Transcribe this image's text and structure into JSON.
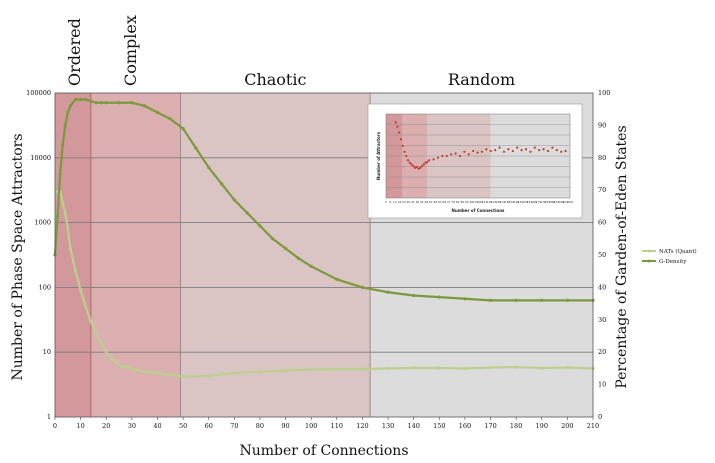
{
  "chart_data": {
    "type": "line",
    "xlabel": "Number of Connections",
    "ylabel_left": "Number of Phase Space Attractors",
    "ylabel_right": "Percentage of Garden-of-Eden States",
    "x_ticks": [
      0,
      10,
      20,
      30,
      40,
      50,
      60,
      70,
      80,
      90,
      100,
      110,
      120,
      130,
      140,
      150,
      160,
      170,
      180,
      190,
      200,
      210
    ],
    "y_left_ticks": [
      "1",
      "10",
      "100",
      "1000",
      "10000",
      "100000"
    ],
    "y_left_scale": "log",
    "y_left_range": [
      1,
      100000
    ],
    "y_right_ticks": [
      0,
      10,
      20,
      30,
      40,
      50,
      60,
      70,
      80,
      90,
      100
    ],
    "y_right_range": [
      0,
      100
    ],
    "xlim": [
      0,
      210
    ],
    "grid": true,
    "regions": [
      {
        "name": "Ordered",
        "x_start": 0,
        "x_end": 14,
        "color": "#d3989c"
      },
      {
        "name": "Complex",
        "x_start": 14,
        "x_end": 49,
        "color": "#dbaeb0"
      },
      {
        "name": "Chaotic",
        "x_start": 49,
        "x_end": 123,
        "color": "#dbc4c4"
      },
      {
        "name": "Random",
        "x_start": 123,
        "x_end": 210,
        "color": "#dcdcdc"
      }
    ],
    "series": [
      {
        "name": "NATs (Quant)",
        "axis": "left",
        "color": "#bcd08e",
        "x": [
          1,
          2,
          3,
          4,
          5,
          6,
          8,
          10,
          12,
          14,
          16,
          18,
          20,
          22,
          24,
          26,
          28,
          30,
          35,
          40,
          45,
          50,
          60,
          70,
          80,
          90,
          100,
          110,
          120,
          130,
          140,
          150,
          160,
          170,
          180,
          190,
          200,
          210
        ],
        "values": [
          3000,
          3000,
          2000,
          1400,
          800,
          400,
          180,
          90,
          50,
          30,
          20,
          14,
          10,
          8,
          7,
          6,
          6,
          5.5,
          5,
          4.8,
          4.5,
          4.2,
          4.3,
          4.8,
          5,
          5.2,
          5.4,
          5.5,
          5.5,
          5.6,
          5.7,
          5.7,
          5.6,
          5.8,
          5.9,
          5.7,
          5.8,
          5.6
        ]
      },
      {
        "name": "G-Density",
        "axis": "right",
        "color": "#7a9a3c",
        "x": [
          0,
          1,
          2,
          3,
          4,
          5,
          6,
          8,
          10,
          12,
          14,
          16,
          18,
          20,
          25,
          30,
          35,
          40,
          45,
          50,
          55,
          60,
          65,
          70,
          75,
          80,
          85,
          90,
          95,
          100,
          110,
          120,
          130,
          140,
          150,
          160,
          170,
          180,
          190,
          200,
          210
        ],
        "values": [
          50,
          62,
          75,
          84,
          90,
          94,
          96,
          98,
          98,
          98,
          97.5,
          97,
          97,
          97,
          97,
          97,
          96,
          94,
          92,
          89,
          83,
          77,
          72,
          67,
          63,
          59,
          55,
          52,
          49,
          46.5,
          42.5,
          40,
          38.5,
          37.5,
          37,
          36.5,
          36,
          36,
          36,
          36,
          36
        ]
      }
    ],
    "inset": {
      "type": "scatter",
      "xlabel": "Number of Connections",
      "ylabel": "Number of Attractors",
      "x_tick_labels": [
        "1",
        "6",
        "11",
        "16",
        "21",
        "26",
        "31",
        "36",
        "41",
        "46",
        "51",
        "56",
        "61",
        "66",
        "71",
        "76",
        "81",
        "86",
        "91",
        "96",
        "101",
        "106",
        "111",
        "116",
        "121",
        "126",
        "131",
        "136",
        "141",
        "146",
        "151",
        "156",
        "161",
        "166",
        "171",
        "176",
        "181",
        "186",
        "191",
        "196",
        "201",
        "206"
      ],
      "x_range": [
        1,
        210
      ],
      "regions": [
        {
          "x_start": 1,
          "x_end": 20,
          "color": "#d3989c"
        },
        {
          "x_start": 20,
          "x_end": 48,
          "color": "#dbaeb0"
        },
        {
          "x_start": 48,
          "x_end": 120,
          "color": "#dbc4c4"
        },
        {
          "x_start": 120,
          "x_end": 210,
          "color": "#dcdcdc"
        }
      ],
      "point_color": "#c0392b",
      "points_x": [
        12,
        14,
        16,
        18,
        20,
        22,
        24,
        26,
        28,
        30,
        32,
        34,
        36,
        38,
        40,
        42,
        44,
        46,
        48,
        50,
        55,
        60,
        65,
        70,
        75,
        80,
        85,
        90,
        95,
        100,
        105,
        110,
        115,
        120,
        125,
        130,
        135,
        140,
        145,
        150,
        155,
        160,
        165,
        170,
        175,
        180,
        185,
        190,
        195,
        200,
        205
      ],
      "points_y": [
        0.9,
        0.85,
        0.78,
        0.7,
        0.62,
        0.55,
        0.5,
        0.45,
        0.42,
        0.4,
        0.38,
        0.36,
        0.37,
        0.35,
        0.36,
        0.38,
        0.4,
        0.42,
        0.43,
        0.45,
        0.46,
        0.48,
        0.5,
        0.5,
        0.52,
        0.53,
        0.5,
        0.55,
        0.52,
        0.56,
        0.54,
        0.55,
        0.58,
        0.56,
        0.57,
        0.6,
        0.55,
        0.58,
        0.56,
        0.6,
        0.57,
        0.58,
        0.55,
        0.6,
        0.57,
        0.58,
        0.56,
        0.6,
        0.57,
        0.55,
        0.56
      ]
    }
  }
}
